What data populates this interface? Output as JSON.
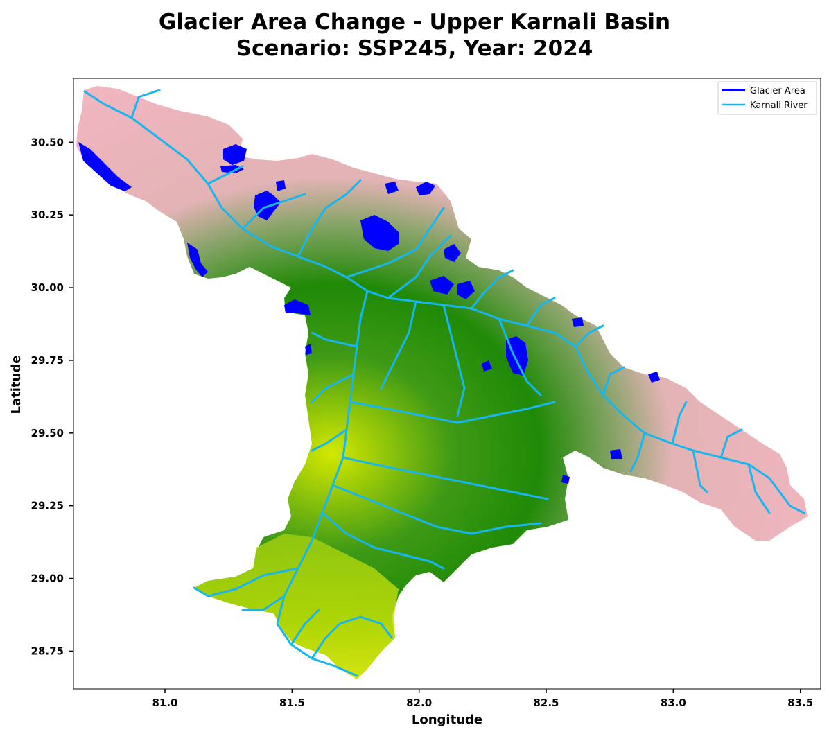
{
  "title_line1": "Glacier Area Change - Upper Karnali Basin",
  "title_line2": "Scenario: SSP245, Year: 2024",
  "xlabel": "Longitude",
  "ylabel": "Latitude",
  "x_ticks": [
    "81.0",
    "81.5",
    "82.0",
    "82.5",
    "83.0",
    "83.5"
  ],
  "y_ticks": [
    "30.50",
    "30.25",
    "30.00",
    "29.75",
    "29.50",
    "29.25",
    "29.00",
    "28.75"
  ],
  "legend": [
    {
      "label": "Glacier Area",
      "color": "#0000ff"
    },
    {
      "label": "Karnali River",
      "color": "#17b6ee"
    }
  ],
  "colors": {
    "glacier": "#0000ff",
    "river": "#17b6ee",
    "high_elevation": "#f2b8c0",
    "mid_elevation": "#2e8a12",
    "low_elevation": "#cfe800"
  },
  "axis_ranges": {
    "lon": [
      80.64,
      83.58
    ],
    "lat": [
      28.62,
      30.72
    ]
  }
}
